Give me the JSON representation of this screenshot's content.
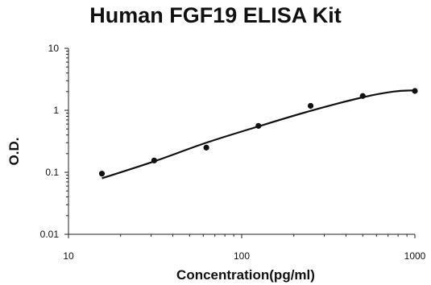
{
  "chart_data": {
    "type": "scatter",
    "title": "Human FGF19 ELISA Kit",
    "xlabel": "Concentration(pg/ml)",
    "ylabel": "O.D.",
    "x_scale": "log",
    "y_scale": "log",
    "xlim": [
      10,
      1000
    ],
    "ylim": [
      0.01,
      10
    ],
    "x_ticks": [
      "10",
      "100",
      "1000"
    ],
    "y_ticks": [
      "0.01",
      "0.1",
      "1",
      "10"
    ],
    "grid": false,
    "legend": "none",
    "series": [
      {
        "points": [
          {
            "x": 15.6,
            "y": 0.095
          },
          {
            "x": 31.25,
            "y": 0.155
          },
          {
            "x": 62.5,
            "y": 0.25
          },
          {
            "x": 125,
            "y": 0.56
          },
          {
            "x": 250,
            "y": 1.18
          },
          {
            "x": 500,
            "y": 1.7
          },
          {
            "x": 1000,
            "y": 2.05
          }
        ]
      }
    ],
    "fit_curve": {
      "x": [
        15.6,
        31.25,
        62.5,
        125,
        250,
        500,
        750,
        1000
      ],
      "y": [
        0.08,
        0.15,
        0.3,
        0.55,
        0.98,
        1.62,
        2.0,
        2.1
      ]
    },
    "colors": {
      "points": "#111111",
      "curve": "#111111",
      "axis": "#222222"
    }
  }
}
